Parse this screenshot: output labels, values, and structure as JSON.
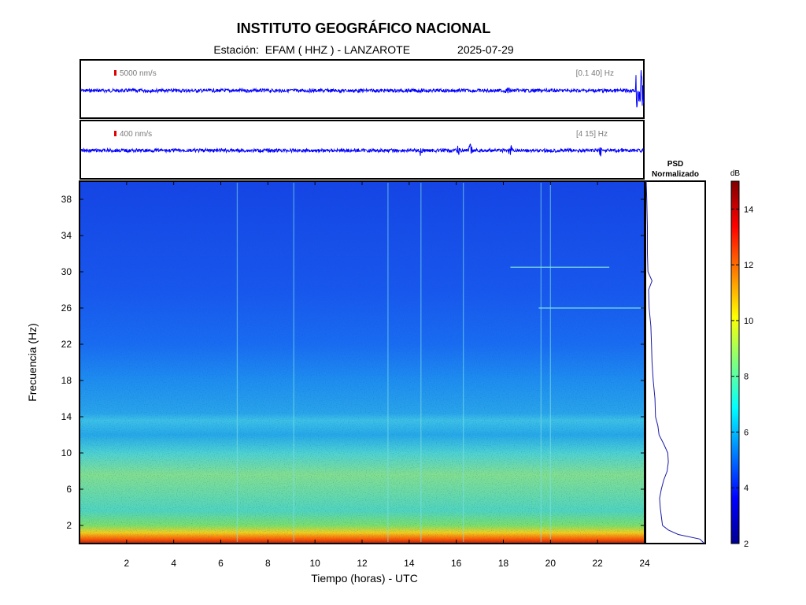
{
  "header": {
    "title": "INSTITUTO GEOGRÁFICO NACIONAL",
    "station_prefix": "Estación:",
    "station": "EFAM ( HHZ ) - LANZAROTE",
    "date": "2025-07-29"
  },
  "chart_data": [
    {
      "type": "line",
      "panel": "trace-broadband",
      "scale_label": "5000 nm/s",
      "band_label": "[0.1 40] Hz",
      "x_range": [
        0,
        24
      ],
      "events_hours": [
        18.2,
        23.8
      ],
      "trace_color": "#0000ff"
    },
    {
      "type": "line",
      "panel": "trace-filtered",
      "scale_label": "400 nm/s",
      "band_label": "[4 15] Hz",
      "x_range": [
        0,
        24
      ],
      "events_hours": [
        14.5,
        16.1,
        16.6,
        18.3,
        22.1
      ],
      "trace_color": "#0000ff"
    },
    {
      "type": "heatmap",
      "panel": "spectrogram",
      "xlabel": "Tiempo (horas) - UTC",
      "ylabel": "Frecuencia  (Hz)",
      "x_range": [
        0,
        24
      ],
      "y_range": [
        0,
        40
      ],
      "x_ticks": [
        "2",
        "4",
        "6",
        "8",
        "10",
        "12",
        "14",
        "16",
        "18",
        "20",
        "22",
        "24"
      ],
      "y_ticks": [
        "2",
        "6",
        "10",
        "14",
        "18",
        "22",
        "26",
        "30",
        "34",
        "38"
      ],
      "spectral_lines": [
        {
          "x_start": 18.3,
          "x_end": 22.5,
          "freq": 30.5
        },
        {
          "x_start": 19.5,
          "x_end": 24.0,
          "freq": 26.0
        }
      ],
      "transients_hours": [
        6.7,
        9.1,
        13.1,
        14.5,
        16.3,
        19.6,
        20.0
      ]
    },
    {
      "type": "line",
      "panel": "psd",
      "title_line1": "PSD",
      "title_line2": "Normalizado",
      "y_range": [
        0,
        40
      ],
      "x_range": [
        0,
        1
      ],
      "points": [
        {
          "f": 0.0,
          "v": 1.0
        },
        {
          "f": 0.5,
          "v": 0.92
        },
        {
          "f": 1.0,
          "v": 0.55
        },
        {
          "f": 1.5,
          "v": 0.38
        },
        {
          "f": 2.0,
          "v": 0.28
        },
        {
          "f": 3.0,
          "v": 0.26
        },
        {
          "f": 4.0,
          "v": 0.24
        },
        {
          "f": 5.0,
          "v": 0.23
        },
        {
          "f": 6.0,
          "v": 0.26
        },
        {
          "f": 7.0,
          "v": 0.3
        },
        {
          "f": 8.0,
          "v": 0.36
        },
        {
          "f": 9.0,
          "v": 0.38
        },
        {
          "f": 10.0,
          "v": 0.37
        },
        {
          "f": 11.0,
          "v": 0.3
        },
        {
          "f": 12.0,
          "v": 0.22
        },
        {
          "f": 13.0,
          "v": 0.2
        },
        {
          "f": 14.0,
          "v": 0.16
        },
        {
          "f": 16.0,
          "v": 0.15
        },
        {
          "f": 18.0,
          "v": 0.12
        },
        {
          "f": 20.0,
          "v": 0.1
        },
        {
          "f": 22.0,
          "v": 0.09
        },
        {
          "f": 24.0,
          "v": 0.08
        },
        {
          "f": 26.0,
          "v": 0.05
        },
        {
          "f": 28.0,
          "v": 0.04
        },
        {
          "f": 29.0,
          "v": 0.1
        },
        {
          "f": 30.0,
          "v": 0.03
        },
        {
          "f": 32.0,
          "v": 0.02
        },
        {
          "f": 35.0,
          "v": 0.02
        },
        {
          "f": 38.0,
          "v": 0.01
        },
        {
          "f": 40.0,
          "v": 0.0
        }
      ],
      "line_color": "#1a1aa8"
    },
    {
      "type": "heatmap",
      "panel": "colorbar",
      "unit": "dB",
      "range": [
        2,
        15
      ],
      "ticks": [
        "2",
        "4",
        "6",
        "8",
        "10",
        "12",
        "14"
      ]
    }
  ]
}
